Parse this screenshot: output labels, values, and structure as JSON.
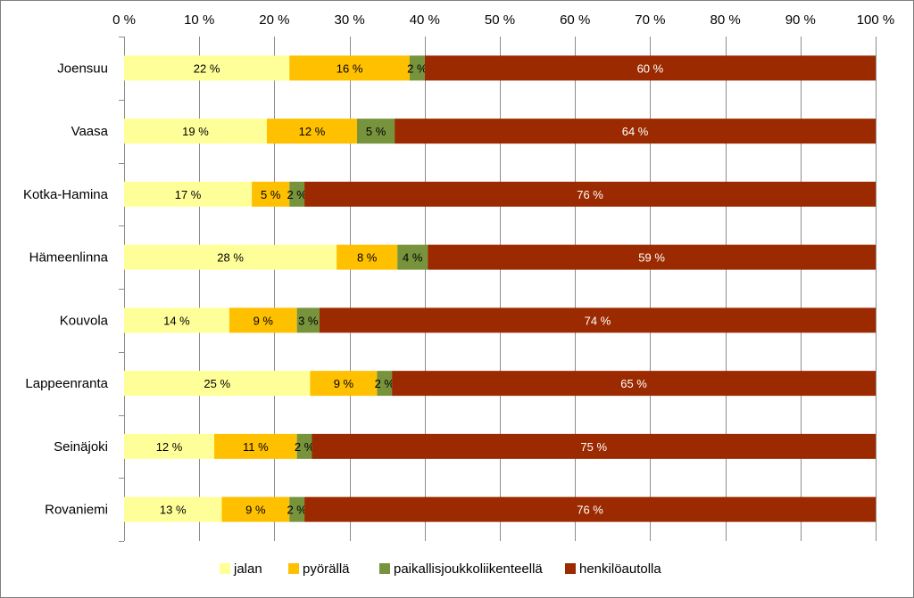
{
  "chart_data": {
    "type": "bar",
    "orientation": "horizontal",
    "stacked": true,
    "percent_stacked": true,
    "title": "",
    "xlabel": "",
    "ylabel": "",
    "xlim": [
      0,
      100
    ],
    "x_ticks": [
      0,
      10,
      20,
      30,
      40,
      50,
      60,
      70,
      80,
      90,
      100
    ],
    "x_tick_labels": [
      "0 %",
      "10 %",
      "20 %",
      "30 %",
      "40 %",
      "50 %",
      "60 %",
      "70 %",
      "80 %",
      "90 %",
      "100 %"
    ],
    "x_axis_position": "top",
    "grid": "vertical",
    "legend_position": "bottom",
    "categories": [
      "Joensuu",
      "Vaasa",
      "Kotka-Hamina",
      "Hämeenlinna",
      "Kouvola",
      "Lappeenranta",
      "Seinäjoki",
      "Rovaniemi"
    ],
    "series": [
      {
        "name": "jalan",
        "color": "#ffff99",
        "label_color": "#000000",
        "values": [
          22,
          19,
          17,
          28,
          14,
          25,
          12,
          13
        ],
        "labels": [
          "22 %",
          "19 %",
          "17 %",
          "28 %",
          "14 %",
          "25 %",
          "12 %",
          "13 %"
        ]
      },
      {
        "name": "pyörällä",
        "color": "#ffc000",
        "label_color": "#000000",
        "values": [
          16,
          12,
          5,
          8,
          9,
          9,
          11,
          9
        ],
        "labels": [
          "16 %",
          "12 %",
          "5 %",
          "8 %",
          "9 %",
          "9 %",
          "11 %",
          "9 %"
        ]
      },
      {
        "name": "paikallisjoukkoliikenteellä",
        "color": "#77933c",
        "label_color": "#000000",
        "values": [
          2,
          5,
          2,
          4,
          3,
          2,
          2,
          2
        ],
        "labels": [
          "2 %",
          "5 %",
          "2 %",
          "4 %",
          "3 %",
          "2 %",
          "2 %",
          "2 %"
        ]
      },
      {
        "name": "henkilöautolla",
        "color": "#9c2a00",
        "label_color": "#ffffff",
        "values": [
          60,
          64,
          76,
          59,
          74,
          65,
          75,
          76
        ],
        "labels": [
          "60 %",
          "64 %",
          "76 %",
          "59 %",
          "74 %",
          "65 %",
          "75 %",
          "76 %"
        ]
      }
    ]
  }
}
